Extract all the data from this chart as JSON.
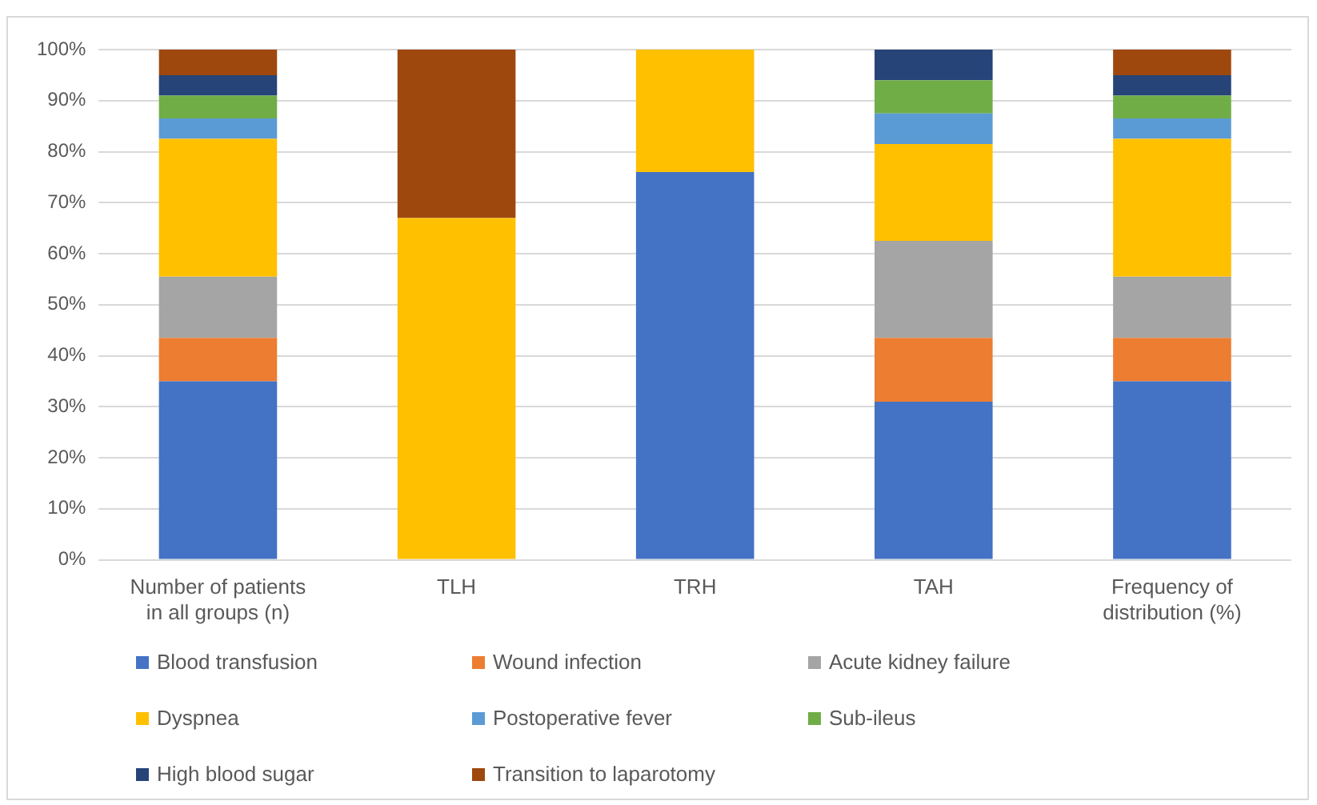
{
  "chart_data": {
    "type": "bar",
    "stacked": true,
    "categories": [
      "Number of patients in all groups (n)",
      "TLH",
      "TRH",
      "TAH",
      "Frequency of distribution (%)"
    ],
    "series": [
      {
        "name": "Blood transfusion",
        "color": "#4472c4",
        "values": [
          35,
          0,
          76,
          31,
          35
        ]
      },
      {
        "name": "Wound infection",
        "color": "#ed7d31",
        "values": [
          8.5,
          0,
          0,
          12.5,
          8.5
        ]
      },
      {
        "name": "Acute kidney failure",
        "color": "#a5a5a5",
        "values": [
          12,
          0,
          0,
          19,
          12
        ]
      },
      {
        "name": "Dyspnea",
        "color": "#ffc000",
        "values": [
          27,
          67,
          24,
          19,
          27
        ]
      },
      {
        "name": "Postoperative fever",
        "color": "#5b9bd5",
        "values": [
          4,
          0,
          0,
          6,
          4
        ]
      },
      {
        "name": "Sub-ileus",
        "color": "#70ad47",
        "values": [
          4.5,
          0,
          0,
          6.5,
          4.5
        ]
      },
      {
        "name": "High blood sugar",
        "color": "#264478",
        "values": [
          4,
          0,
          0,
          6,
          4
        ]
      },
      {
        "name": "Transition to laparotomy",
        "color": "#9e480e",
        "values": [
          5,
          33,
          0,
          0,
          5
        ]
      }
    ],
    "ylim": [
      0,
      100
    ],
    "yticks": [
      {
        "value": 0,
        "label": "0%"
      },
      {
        "value": 10,
        "label": "10%"
      },
      {
        "value": 20,
        "label": "20%"
      },
      {
        "value": 30,
        "label": "30%"
      },
      {
        "value": 40,
        "label": "40%"
      },
      {
        "value": 50,
        "label": "50%"
      },
      {
        "value": 60,
        "label": "60%"
      },
      {
        "value": 70,
        "label": "70%"
      },
      {
        "value": 80,
        "label": "80%"
      },
      {
        "value": 90,
        "label": "90%"
      },
      {
        "value": 100,
        "label": "100%"
      }
    ],
    "grid": "y",
    "legend": "bottom"
  }
}
